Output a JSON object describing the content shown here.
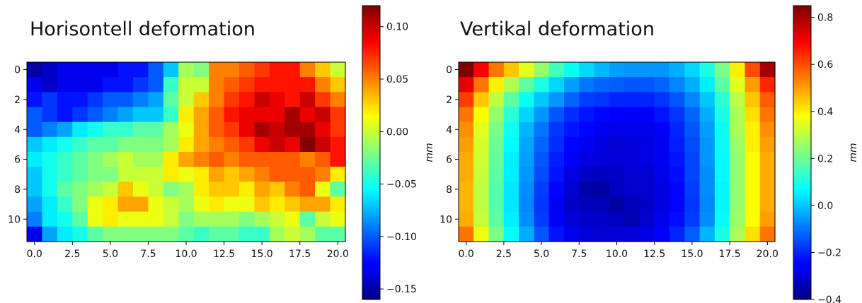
{
  "chart_data": [
    {
      "type": "heatmap",
      "title": "Horisontell deformation",
      "colorbar_label": "mm",
      "colormap": "jet",
      "vmin": -0.16,
      "vmax": 0.12,
      "x_ticks": [
        "0.0",
        "2.5",
        "5.0",
        "7.5",
        "10.0",
        "12.5",
        "15.0",
        "17.5",
        "20.0"
      ],
      "y_ticks": [
        "0",
        "2",
        "4",
        "6",
        "8",
        "10"
      ],
      "colorbar_ticks": [
        "0.10",
        "0.05",
        "0.00",
        "−0.05",
        "−0.10",
        "−0.15"
      ],
      "values": [
        [
          -0.15,
          -0.14,
          -0.13,
          -0.13,
          -0.13,
          -0.13,
          -0.12,
          -0.12,
          -0.1,
          -0.07,
          -0.01,
          -0.02,
          0.05,
          0.05,
          0.06,
          0.07,
          0.08,
          0.08,
          0.05,
          0.03,
          0.0
        ],
        [
          -0.13,
          -0.14,
          -0.13,
          -0.13,
          -0.13,
          -0.12,
          -0.12,
          -0.11,
          -0.1,
          -0.04,
          0.0,
          0.0,
          0.05,
          0.06,
          0.07,
          0.08,
          0.08,
          0.08,
          0.08,
          0.05,
          0.03
        ],
        [
          -0.12,
          -0.11,
          -0.12,
          -0.12,
          -0.11,
          -0.1,
          -0.1,
          -0.09,
          -0.08,
          -0.03,
          0.0,
          0.03,
          0.05,
          0.07,
          0.08,
          0.1,
          0.09,
          0.08,
          0.1,
          0.07,
          0.05
        ],
        [
          -0.1,
          -0.11,
          -0.12,
          -0.11,
          -0.1,
          -0.09,
          -0.08,
          -0.07,
          -0.07,
          -0.04,
          0.02,
          0.04,
          0.06,
          0.08,
          0.09,
          0.09,
          0.09,
          0.11,
          0.09,
          0.1,
          0.07
        ],
        [
          -0.1,
          -0.09,
          -0.08,
          -0.06,
          -0.05,
          -0.04,
          -0.04,
          -0.03,
          -0.03,
          -0.01,
          0.01,
          0.04,
          0.06,
          0.07,
          0.09,
          0.11,
          0.1,
          0.11,
          0.11,
          0.09,
          0.07
        ],
        [
          -0.07,
          -0.06,
          -0.05,
          -0.04,
          -0.03,
          -0.03,
          -0.02,
          -0.02,
          -0.02,
          -0.01,
          0.02,
          0.04,
          0.05,
          0.06,
          0.07,
          0.09,
          0.1,
          0.09,
          0.12,
          0.1,
          0.08
        ],
        [
          -0.06,
          -0.05,
          -0.04,
          -0.03,
          -0.02,
          -0.01,
          0.0,
          -0.01,
          -0.01,
          0.02,
          0.04,
          0.05,
          0.06,
          0.05,
          0.06,
          0.06,
          0.06,
          0.06,
          0.05,
          0.06,
          0.08
        ],
        [
          -0.07,
          -0.05,
          -0.04,
          -0.03,
          -0.02,
          -0.02,
          0.0,
          0.0,
          0.0,
          0.02,
          0.01,
          0.02,
          0.04,
          0.03,
          0.04,
          0.05,
          0.06,
          0.06,
          0.06,
          0.05,
          0.02
        ],
        [
          -0.07,
          -0.05,
          -0.03,
          -0.02,
          -0.01,
          0.0,
          0.03,
          0.01,
          0.0,
          -0.02,
          -0.01,
          0.02,
          0.03,
          0.03,
          0.02,
          0.04,
          0.03,
          0.05,
          0.06,
          0.01,
          -0.03
        ],
        [
          -0.08,
          -0.06,
          -0.04,
          -0.02,
          0.01,
          0.02,
          0.04,
          0.04,
          0.01,
          0.0,
          -0.01,
          0.01,
          0.02,
          0.01,
          0.01,
          0.03,
          0.02,
          0.03,
          0.04,
          0.04,
          0.02
        ],
        [
          -0.09,
          -0.06,
          -0.05,
          -0.03,
          0.01,
          0.02,
          0.01,
          0.01,
          0.01,
          0.0,
          -0.02,
          -0.01,
          -0.01,
          -0.01,
          -0.02,
          -0.01,
          0.0,
          0.01,
          -0.03,
          0.0,
          0.01
        ],
        [
          -0.13,
          -0.08,
          -0.06,
          -0.05,
          -0.03,
          -0.02,
          -0.02,
          -0.02,
          -0.02,
          -0.02,
          -0.03,
          -0.04,
          -0.03,
          -0.03,
          -0.04,
          -0.04,
          -0.01,
          0.0,
          -0.01,
          -0.03,
          -0.03
        ]
      ]
    },
    {
      "type": "heatmap",
      "title": "Vertikal deformation",
      "colorbar_label": "mm",
      "colormap": "jet",
      "vmin": -0.4,
      "vmax": 0.85,
      "x_ticks": [
        "0.0",
        "2.5",
        "5.0",
        "7.5",
        "10.0",
        "12.5",
        "15.0",
        "17.5",
        "20.0"
      ],
      "y_ticks": [
        "0",
        "2",
        "4",
        "6",
        "8",
        "10"
      ],
      "colorbar_ticks": [
        "0.8",
        "0.6",
        "0.4",
        "0.2",
        "0.0",
        "−0.2",
        "−0.4"
      ],
      "values": [
        [
          0.85,
          0.7,
          0.55,
          0.45,
          0.35,
          0.25,
          0.15,
          0.08,
          0.02,
          -0.02,
          -0.05,
          -0.06,
          -0.06,
          -0.06,
          -0.03,
          0.02,
          0.1,
          0.22,
          0.4,
          0.6,
          0.8
        ],
        [
          0.72,
          0.55,
          0.4,
          0.28,
          0.18,
          0.1,
          0.02,
          -0.05,
          -0.1,
          -0.12,
          -0.13,
          -0.14,
          -0.14,
          -0.12,
          -0.08,
          -0.03,
          0.05,
          0.18,
          0.35,
          0.5,
          0.65
        ],
        [
          0.62,
          0.45,
          0.3,
          0.18,
          0.08,
          0.0,
          -0.06,
          -0.12,
          -0.17,
          -0.18,
          -0.2,
          -0.2,
          -0.2,
          -0.18,
          -0.14,
          -0.08,
          0.0,
          0.12,
          0.3,
          0.45,
          0.58
        ],
        [
          0.55,
          0.38,
          0.25,
          0.12,
          0.02,
          -0.06,
          -0.14,
          -0.19,
          -0.22,
          -0.24,
          -0.25,
          -0.25,
          -0.25,
          -0.22,
          -0.18,
          -0.12,
          -0.03,
          0.1,
          0.28,
          0.42,
          0.55
        ],
        [
          0.52,
          0.35,
          0.22,
          0.09,
          -0.02,
          -0.1,
          -0.18,
          -0.22,
          -0.24,
          -0.26,
          -0.27,
          -0.27,
          -0.27,
          -0.25,
          -0.2,
          -0.14,
          -0.05,
          0.08,
          0.28,
          0.4,
          0.52
        ],
        [
          0.5,
          0.33,
          0.2,
          0.07,
          -0.04,
          -0.12,
          -0.19,
          -0.24,
          -0.26,
          -0.28,
          -0.3,
          -0.29,
          -0.28,
          -0.26,
          -0.21,
          -0.15,
          -0.06,
          0.08,
          0.26,
          0.4,
          0.5
        ],
        [
          0.48,
          0.32,
          0.19,
          0.05,
          -0.05,
          -0.14,
          -0.21,
          -0.25,
          -0.28,
          -0.29,
          -0.29,
          -0.29,
          -0.28,
          -0.26,
          -0.22,
          -0.16,
          -0.06,
          0.07,
          0.25,
          0.38,
          0.48
        ],
        [
          0.48,
          0.31,
          0.18,
          0.05,
          -0.06,
          -0.15,
          -0.22,
          -0.28,
          -0.31,
          -0.32,
          -0.31,
          -0.3,
          -0.3,
          -0.27,
          -0.23,
          -0.16,
          -0.07,
          0.07,
          0.25,
          0.38,
          0.48
        ],
        [
          0.47,
          0.3,
          0.17,
          0.04,
          -0.07,
          -0.17,
          -0.24,
          -0.3,
          -0.35,
          -0.36,
          -0.32,
          -0.3,
          -0.3,
          -0.28,
          -0.24,
          -0.17,
          -0.07,
          0.06,
          0.25,
          0.38,
          0.48
        ],
        [
          0.47,
          0.3,
          0.17,
          0.04,
          -0.08,
          -0.18,
          -0.26,
          -0.31,
          -0.33,
          -0.33,
          -0.36,
          -0.33,
          -0.31,
          -0.28,
          -0.24,
          -0.18,
          -0.08,
          0.06,
          0.25,
          0.38,
          0.48
        ],
        [
          0.48,
          0.31,
          0.18,
          0.05,
          -0.07,
          -0.17,
          -0.25,
          -0.29,
          -0.31,
          -0.31,
          -0.32,
          -0.34,
          -0.3,
          -0.27,
          -0.23,
          -0.17,
          -0.07,
          0.07,
          0.26,
          0.38,
          0.5
        ],
        [
          0.55,
          0.36,
          0.22,
          0.08,
          -0.03,
          -0.14,
          -0.22,
          -0.27,
          -0.29,
          -0.3,
          -0.29,
          -0.29,
          -0.28,
          -0.25,
          -0.2,
          -0.13,
          -0.02,
          0.1,
          0.28,
          0.42,
          0.55
        ]
      ]
    }
  ]
}
